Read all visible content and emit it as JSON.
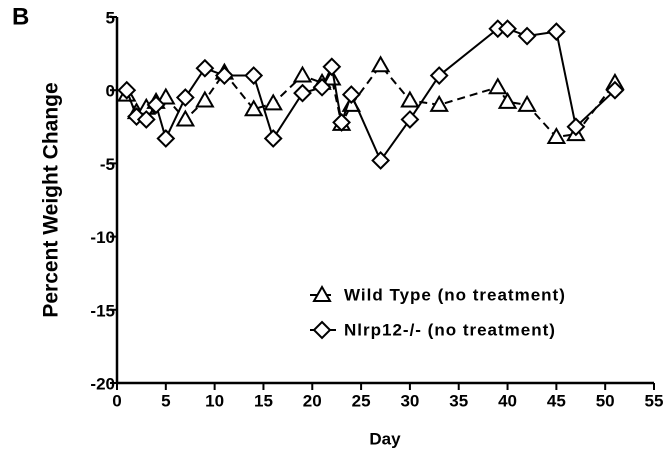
{
  "chart_data": {
    "type": "line",
    "panel_label": "B",
    "x_label": "Day",
    "y_label": "Percent Weight Change",
    "xlim": [
      0,
      55
    ],
    "xticks": [
      0,
      5,
      10,
      15,
      20,
      25,
      30,
      35,
      40,
      45,
      50,
      55
    ],
    "ylim": [
      -20,
      5
    ],
    "yticks": [
      -20,
      -15,
      -10,
      -5,
      0,
      5
    ],
    "grid": false,
    "legend": "lower right",
    "series": [
      {
        "name": "Wild Type (no treatment)",
        "color": "#000000",
        "marker": "triangle",
        "line_style": "dashed",
        "x": [
          1,
          2,
          3,
          4,
          5,
          7,
          9,
          11,
          14,
          16,
          19,
          21,
          22,
          23,
          24,
          27,
          30,
          33,
          39,
          40,
          42,
          45,
          47,
          51
        ],
        "values": [
          -0.3,
          -1.5,
          -1.2,
          -0.8,
          -0.5,
          -2,
          -0.7,
          1.2,
          -1.3,
          -0.9,
          1,
          0.5,
          0.8,
          -2.3,
          -1,
          1.7,
          -0.7,
          -1,
          0.2,
          -0.8,
          -1,
          -3.2,
          -3,
          0.5
        ]
      },
      {
        "name": "Nlrp12-/- (no treatment)",
        "color": "#000000",
        "marker": "diamond",
        "line_style": "solid",
        "x": [
          1,
          2,
          3,
          4,
          5,
          7,
          9,
          11,
          14,
          16,
          19,
          21,
          22,
          23,
          24,
          27,
          30,
          33,
          39,
          40,
          42,
          45,
          47,
          51
        ],
        "values": [
          0,
          -1.8,
          -2,
          -1,
          -3.3,
          -0.5,
          1.5,
          1,
          1,
          -3.3,
          -0.2,
          0.2,
          1.6,
          -2.2,
          -0.3,
          -4.8,
          -2,
          1,
          4.2,
          4.2,
          3.7,
          4,
          -2.5,
          0
        ]
      }
    ]
  }
}
